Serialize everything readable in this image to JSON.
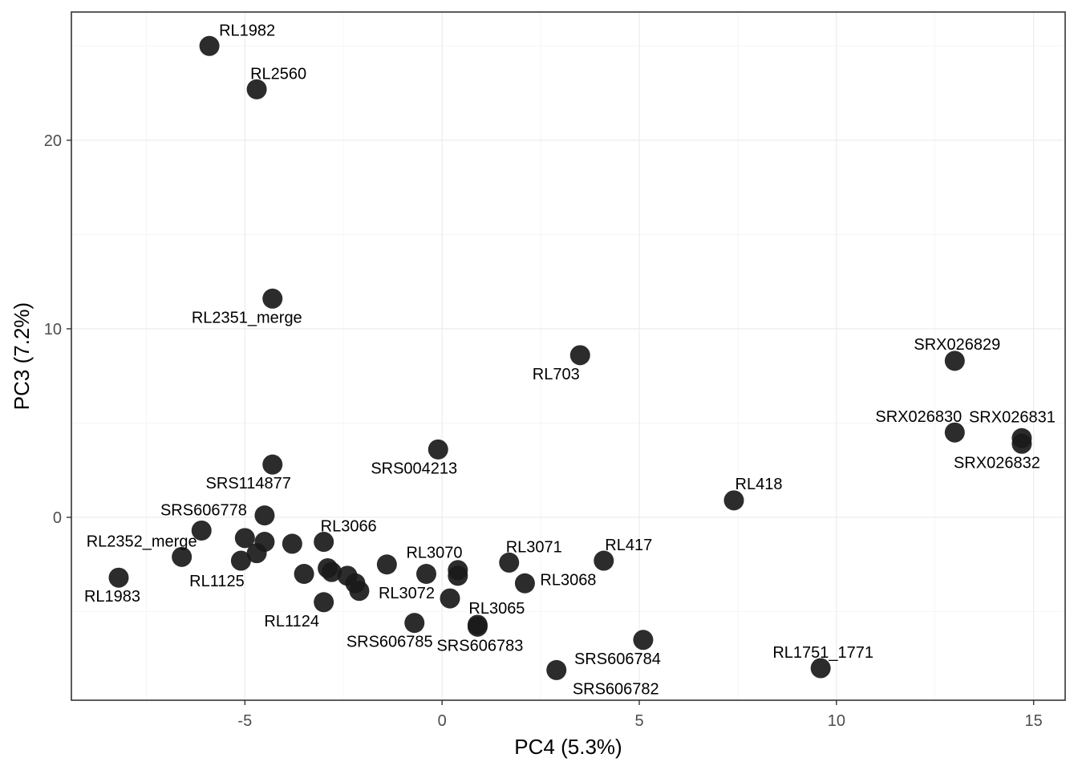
{
  "chart_data": {
    "type": "scatter",
    "xlabel": "PC4 (5.3%)",
    "ylabel": "PC3 (7.2%)",
    "xlim": [
      -9.4,
      15.8
    ],
    "ylim": [
      -9.7,
      26.8
    ],
    "xticks": [
      -5,
      0,
      5,
      10,
      15
    ],
    "xtick_labels": [
      "-5",
      "0",
      "5",
      "10",
      "15"
    ],
    "yticks": [
      0,
      10,
      20
    ],
    "ytick_labels": [
      "0",
      "10",
      "20"
    ],
    "grid": true,
    "point_color": "#1a1a1a",
    "points": [
      {
        "x": -5.9,
        "y": 25.0,
        "label": "RL1982"
      },
      {
        "x": -4.7,
        "y": 22.7,
        "label": "RL2560"
      },
      {
        "x": -4.3,
        "y": 11.6,
        "label": "RL2351_merge"
      },
      {
        "x": 3.5,
        "y": 8.6,
        "label": "RL703"
      },
      {
        "x": 13.0,
        "y": 8.3,
        "label": "SRX026829"
      },
      {
        "x": 13.0,
        "y": 4.5,
        "label": "SRX026830"
      },
      {
        "x": 14.7,
        "y": 4.2,
        "label": "SRX026831"
      },
      {
        "x": 14.7,
        "y": 3.9,
        "label": "SRX026832"
      },
      {
        "x": -0.1,
        "y": 3.6,
        "label": "SRS004213"
      },
      {
        "x": -4.3,
        "y": 2.8,
        "label": "SRS114877"
      },
      {
        "x": 7.4,
        "y": 0.9,
        "label": "RL418"
      },
      {
        "x": -4.5,
        "y": 0.1,
        "label": "SRS606778"
      },
      {
        "x": -6.1,
        "y": -0.7,
        "label": null
      },
      {
        "x": -5.0,
        "y": -1.1,
        "label": null
      },
      {
        "x": -4.5,
        "y": -1.3,
        "label": null
      },
      {
        "x": -3.8,
        "y": -1.4,
        "label": null
      },
      {
        "x": -3.0,
        "y": -1.3,
        "label": "RL3066"
      },
      {
        "x": -6.6,
        "y": -2.1,
        "label": "RL2352_merge"
      },
      {
        "x": -8.2,
        "y": -3.2,
        "label": "RL1983"
      },
      {
        "x": -5.1,
        "y": -2.3,
        "label": "RL1125"
      },
      {
        "x": -4.7,
        "y": -1.9,
        "label": null
      },
      {
        "x": -3.5,
        "y": -3.0,
        "label": null
      },
      {
        "x": -2.9,
        "y": -2.7,
        "label": null
      },
      {
        "x": -2.8,
        "y": -2.9,
        "label": null
      },
      {
        "x": -2.4,
        "y": -3.1,
        "label": null
      },
      {
        "x": -2.2,
        "y": -3.5,
        "label": null
      },
      {
        "x": -2.1,
        "y": -3.9,
        "label": null
      },
      {
        "x": -3.0,
        "y": -4.5,
        "label": "RL1124"
      },
      {
        "x": -1.4,
        "y": -2.5,
        "label": null
      },
      {
        "x": -0.4,
        "y": -3.0,
        "label": "RL3070"
      },
      {
        "x": 0.4,
        "y": -2.8,
        "label": null
      },
      {
        "x": 0.4,
        "y": -3.1,
        "label": null
      },
      {
        "x": 0.2,
        "y": -4.3,
        "label": "RL3072"
      },
      {
        "x": 1.7,
        "y": -2.4,
        "label": "RL3071"
      },
      {
        "x": 2.1,
        "y": -3.5,
        "label": "RL3068"
      },
      {
        "x": 4.1,
        "y": -2.3,
        "label": "RL417"
      },
      {
        "x": 0.9,
        "y": -5.7,
        "label": "RL3065"
      },
      {
        "x": -0.7,
        "y": -5.6,
        "label": "SRS606785"
      },
      {
        "x": 0.9,
        "y": -5.8,
        "label": "SRS606783"
      },
      {
        "x": 5.1,
        "y": -6.5,
        "label": "SRS606784"
      },
      {
        "x": 2.9,
        "y": -8.1,
        "label": "SRS606782"
      },
      {
        "x": 9.6,
        "y": -8.0,
        "label": "RL1751_1771"
      }
    ]
  }
}
